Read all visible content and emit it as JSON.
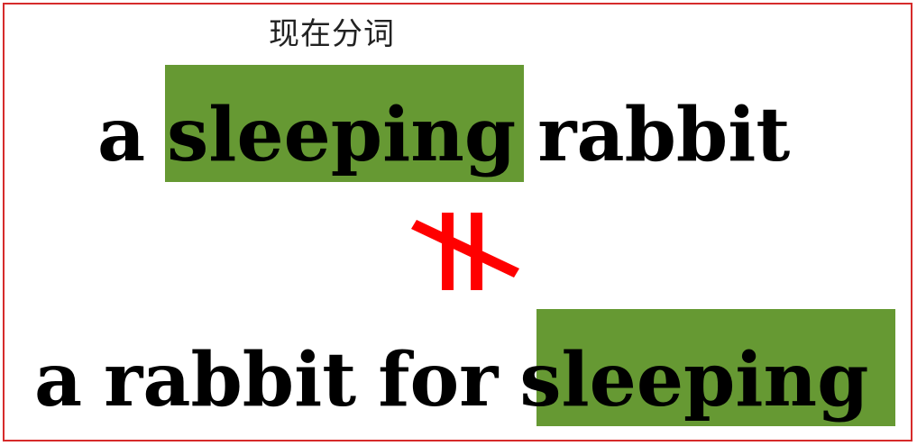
{
  "label": "现在分词",
  "line1": {
    "w1": "a",
    "w2": "sleeping",
    "w3": "rabbit"
  },
  "line2": {
    "w1": "a",
    "w2": "rabbit",
    "w3": "for",
    "w4": "sleeping"
  },
  "colors": {
    "highlight": "#669933",
    "symbol": "#ff0000",
    "frame": "#d62b2b",
    "text": "#000000"
  }
}
